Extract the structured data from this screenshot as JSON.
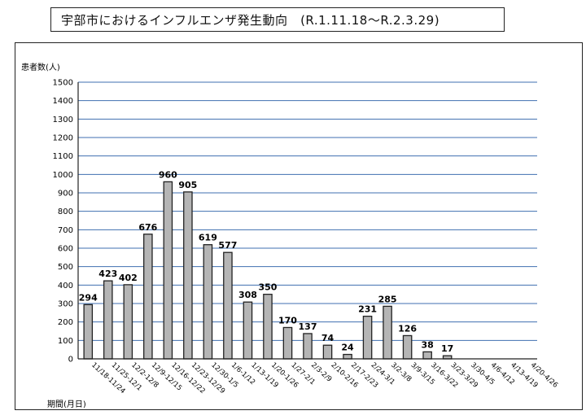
{
  "chart_data": {
    "type": "bar",
    "title": "宇部市におけるインフルエンザ発生動向",
    "period": "(R.1.11.18～R.2.3.29)",
    "ylabel": "患者数(人)",
    "xlabel": "期間(月日)",
    "ylim": [
      0,
      1500
    ],
    "yticks": [
      0,
      100,
      200,
      300,
      400,
      500,
      600,
      700,
      800,
      900,
      1000,
      1100,
      1200,
      1300,
      1400,
      1500
    ],
    "grid": true,
    "categories": [
      "11/18-11/24",
      "11/25-12/1",
      "12/2-12/8",
      "12/9-12/15",
      "12/16-12/22",
      "12/23-12/29",
      "12/30-1/5",
      "1/6-1/12",
      "1/13-1/19",
      "1/20-1/26",
      "1/27-2/1",
      "2/3-2/9",
      "2/10-2/16",
      "2/17-2/23",
      "2/24-3/1",
      "3/2-3/8",
      "3/9-3/15",
      "3/16-3/22",
      "3/23-3/29",
      "3/30-4/5",
      "4/6-4/12",
      "4/13-4/19",
      "4/20-4/26"
    ],
    "values": [
      294,
      423,
      402,
      676,
      960,
      905,
      619,
      577,
      308,
      350,
      170,
      137,
      74,
      24,
      231,
      285,
      126,
      38,
      17,
      null,
      null,
      null,
      null
    ],
    "colors": {
      "bar_fill": "#b5b5b5",
      "bar_stroke": "#222222",
      "grid": "#3f6fb0",
      "axis": "#222222"
    }
  }
}
